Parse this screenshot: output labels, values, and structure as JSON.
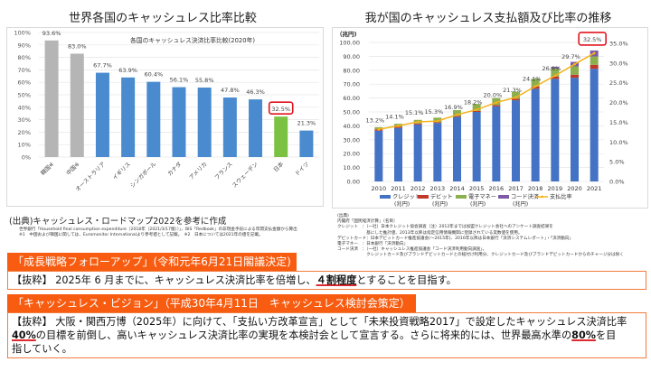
{
  "left": {
    "section_title": "世界各国のキャッシュレス比率比較",
    "source_heading": "(出典)キャッシュレス・ロードマップ2022を参考に作成",
    "notes": [
      "世界銀行「Household final consumption expenditure（2018年（2021/3/17版））」、BIS「Redbook」の非現金手段による年間支払金額から算出",
      "※1　中国および韓国に関しては、Euromonitor Internationalより参考値として記載。　※2　日本については2021年の値を記載。"
    ]
  },
  "right": {
    "section_title": "我が国のキャッシュレス支払額及び比率の推移",
    "notes": [
      "(出典)",
      "内閣府「国民経済計算」（名目）",
      "クレジット　：（一社）日本クレジット協会調査（注）2012年までは加盟クレジット会社へのアンケート調査結果を",
      "　　　　　　　基にした推計値、2013年以降は指定信用情報機関に登録されている実数値を使用。",
      "デビットカード：日本デビットカード推進協議会(～2015年)、2016年以降は日本銀行「決済システムレポート」・「決済動向」",
      "電子マネー　：日本銀行「決済動向」",
      "コード決済　：（一社）キャッシュレス推進協議会「コード決済利用動向調査」。",
      "　　　　　　　クレジットカード及びブランドデビットカードとの紐付け利用分、クレジットカード及びブランドデビットカードからのチャージ分は除く"
    ]
  },
  "policy1": {
    "tag": "「成長戦略フォローアップ」(令和元年6月21日閣議決定)",
    "text_pre": "【抜粋】 2025年 6 月までに、キャッシュレス決済比率を倍増し、",
    "text_em": "４割程度",
    "text_post": "とすることを目指す。"
  },
  "policy2": {
    "tag": "「キャッシュレス・ビジョン」（平成30年4月11日　キャッシュレス検討会策定）",
    "line1": "【抜粋】 大阪・関西万博（2025年）に向けて、「支払い方改革宣言」として「未来投資戦略2017」で設定したキャッシュレス決済比率",
    "em1": "40%",
    "line2_mid": "の目標を前倒し、高いキャッシュレス決済比率の実現を本検討会として宣言する。さらに将来的には、世界最高水準の",
    "em2": "80%",
    "line2_post": "を目",
    "line3": "指していく。"
  },
  "colors": {
    "accent_orange": "#f75c10",
    "box_border": "#f27c3c",
    "highlight_red": "#e0141e",
    "bar_blue": "#4472c4",
    "bar_gray": "#b5b5b5",
    "bar_green": "#7cc242",
    "debit_red": "#c0392b",
    "emoney_green": "#8db04f",
    "code_purple": "#7b5aa6",
    "line_yellow": "#f5b21b"
  },
  "chart_data": [
    {
      "type": "bar",
      "title": "各国のキャッシュレス決済比率比較(2020年)",
      "categories": [
        "韓国※",
        "中国※",
        "オーストラリア",
        "イギリス",
        "シンガポール",
        "カナダ",
        "アメリカ",
        "フランス",
        "スウェーデン",
        "日本",
        "ドイツ"
      ],
      "values": [
        93.6,
        83.0,
        67.7,
        63.9,
        60.4,
        56.1,
        55.8,
        47.8,
        46.3,
        32.5,
        21.3
      ],
      "labels": [
        "93.6%",
        "83.0%",
        "67.7%",
        "63.9%",
        "60.4%",
        "56.1%",
        "55.8%",
        "47.8%",
        "46.3%",
        "32.5%",
        "21.3%"
      ],
      "bar_colors": [
        "gray",
        "gray",
        "blue",
        "blue",
        "blue",
        "blue",
        "blue",
        "blue",
        "blue",
        "green",
        "blue"
      ],
      "highlight_index": 9,
      "xlabel": "",
      "ylabel": "",
      "ylim": [
        0,
        100
      ],
      "yticks": [
        "0%",
        "10%",
        "20%",
        "30%",
        "40%",
        "50%",
        "60%",
        "70%",
        "80%",
        "90%",
        "100%"
      ],
      "grid": true
    },
    {
      "type": "bar",
      "stacked": true,
      "y_unit_label": "（兆円)",
      "categories": [
        "2010",
        "2011",
        "2012",
        "2013",
        "2014",
        "2015",
        "2016",
        "2017",
        "2018",
        "2019",
        "2020",
        "2021"
      ],
      "series": [
        {
          "name": "クレジット(兆円)",
          "values": [
            36.5,
            38.5,
            41.0,
            42.0,
            46.5,
            50.0,
            54.0,
            58.4,
            66.7,
            73.8,
            74.6,
            81.0
          ]
        },
        {
          "name": "デビット(兆円)",
          "values": [
            0.9,
            0.8,
            0.7,
            0.6,
            0.6,
            0.7,
            0.9,
            1.1,
            1.6,
            1.7,
            2.2,
            2.9
          ]
        },
        {
          "name": "電子マネー(兆円)",
          "values": [
            1.6,
            2.2,
            2.6,
            3.3,
            4.2,
            5.0,
            5.1,
            5.1,
            5.5,
            5.8,
            6.0,
            6.0
          ]
        },
        {
          "name": "コード決済(兆円)",
          "values": [
            0,
            0,
            0,
            0,
            0,
            0,
            0,
            0,
            0.2,
            1.1,
            3.2,
            4.3
          ]
        }
      ],
      "line_series": {
        "name": "支払比率",
        "values": [
          13.2,
          14.1,
          15.1,
          15.3,
          16.9,
          18.2,
          20.0,
          21.3,
          24.1,
          26.8,
          29.7,
          32.5
        ],
        "labels": [
          "13.2%",
          "14.1%",
          "15.1%",
          "15.3%",
          "16.9%",
          "18.2%",
          "20.0%",
          "21.3%",
          "24.1%",
          "26.8%",
          "29.7%",
          "32.5%"
        ]
      },
      "highlight_index": 11,
      "ylim": [
        0,
        100
      ],
      "yticks": [
        "0.00",
        "10.00",
        "20.00",
        "30.00",
        "40.00",
        "50.00",
        "60.00",
        "70.00",
        "80.00",
        "90.00",
        "100.00"
      ],
      "y2lim": [
        0,
        35
      ],
      "y2ticks": [
        "0.0%",
        "5.0%",
        "10.0%",
        "15.0%",
        "20.0%",
        "25.0%",
        "30.0%",
        "35.0%"
      ],
      "legend": [
        "クレジット",
        "デビット",
        "電子マネー",
        "コード決済",
        "支払比率"
      ],
      "legend_sub": [
        "(兆円)",
        "(兆円)",
        "(兆円)",
        "(兆円)",
        ""
      ],
      "legend_position": "bottom",
      "grid": true
    }
  ]
}
